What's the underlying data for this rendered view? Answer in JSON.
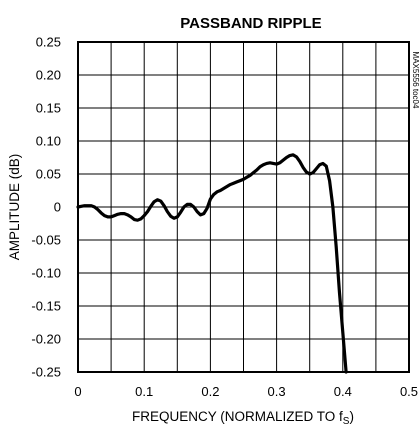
{
  "chart_data": {
    "type": "line",
    "title": "PASSBAND RIPPLE",
    "xlabel": "FREQUENCY (NORMALIZED TO f",
    "xlabel_sub": "S",
    "xlabel_close": ")",
    "ylabel": "AMPLITUDE (dB)",
    "side_note": "MAX5556 toc04",
    "xlim": [
      0,
      0.5
    ],
    "ylim": [
      -0.25,
      0.25
    ],
    "x_ticks": [
      0,
      0.1,
      0.2,
      0.3,
      0.4,
      0.5
    ],
    "x_tick_labels": [
      "0",
      "0.1",
      "0.2",
      "0.3",
      "0.4",
      "0.5"
    ],
    "y_ticks": [
      0.25,
      0.2,
      0.15,
      0.1,
      0.05,
      0,
      -0.05,
      -0.1,
      -0.15,
      -0.2,
      -0.25
    ],
    "y_tick_labels": [
      "0.25",
      "0.20",
      "0.15",
      "0.10",
      "0.05",
      "0",
      "-0.05",
      "-0.10",
      "-0.15",
      "-0.20",
      "-0.25"
    ],
    "x_grid_step": 0.05,
    "grid": true,
    "series": [
      {
        "points": [
          [
            0.0,
            0.0
          ],
          [
            0.005,
            0.001
          ],
          [
            0.01,
            0.002
          ],
          [
            0.015,
            0.002
          ],
          [
            0.02,
            0.002
          ],
          [
            0.025,
            0.0
          ],
          [
            0.03,
            -0.004
          ],
          [
            0.035,
            -0.009
          ],
          [
            0.04,
            -0.013
          ],
          [
            0.045,
            -0.015
          ],
          [
            0.05,
            -0.015
          ],
          [
            0.055,
            -0.013
          ],
          [
            0.06,
            -0.011
          ],
          [
            0.065,
            -0.01
          ],
          [
            0.07,
            -0.01
          ],
          [
            0.075,
            -0.012
          ],
          [
            0.08,
            -0.015
          ],
          [
            0.085,
            -0.019
          ],
          [
            0.09,
            -0.02
          ],
          [
            0.095,
            -0.018
          ],
          [
            0.1,
            -0.013
          ],
          [
            0.105,
            -0.007
          ],
          [
            0.11,
            0.001
          ],
          [
            0.115,
            0.008
          ],
          [
            0.12,
            0.011
          ],
          [
            0.125,
            0.009
          ],
          [
            0.13,
            0.002
          ],
          [
            0.135,
            -0.007
          ],
          [
            0.14,
            -0.014
          ],
          [
            0.145,
            -0.017
          ],
          [
            0.15,
            -0.015
          ],
          [
            0.155,
            -0.008
          ],
          [
            0.16,
            0.0
          ],
          [
            0.165,
            0.004
          ],
          [
            0.17,
            0.004
          ],
          [
            0.175,
            0.0
          ],
          [
            0.18,
            -0.007
          ],
          [
            0.185,
            -0.012
          ],
          [
            0.19,
            -0.01
          ],
          [
            0.195,
            -0.002
          ],
          [
            0.2,
            0.012
          ],
          [
            0.205,
            0.019
          ],
          [
            0.21,
            0.023
          ],
          [
            0.215,
            0.025
          ],
          [
            0.22,
            0.028
          ],
          [
            0.225,
            0.031
          ],
          [
            0.23,
            0.034
          ],
          [
            0.235,
            0.036
          ],
          [
            0.24,
            0.038
          ],
          [
            0.245,
            0.04
          ],
          [
            0.25,
            0.042
          ],
          [
            0.255,
            0.045
          ],
          [
            0.26,
            0.048
          ],
          [
            0.265,
            0.052
          ],
          [
            0.27,
            0.056
          ],
          [
            0.275,
            0.061
          ],
          [
            0.28,
            0.064
          ],
          [
            0.285,
            0.066
          ],
          [
            0.29,
            0.067
          ],
          [
            0.295,
            0.066
          ],
          [
            0.3,
            0.065
          ],
          [
            0.305,
            0.067
          ],
          [
            0.31,
            0.071
          ],
          [
            0.315,
            0.075
          ],
          [
            0.32,
            0.078
          ],
          [
            0.325,
            0.079
          ],
          [
            0.33,
            0.076
          ],
          [
            0.335,
            0.069
          ],
          [
            0.34,
            0.06
          ],
          [
            0.345,
            0.053
          ],
          [
            0.35,
            0.05
          ],
          [
            0.355,
            0.052
          ],
          [
            0.36,
            0.058
          ],
          [
            0.365,
            0.064
          ],
          [
            0.37,
            0.066
          ],
          [
            0.375,
            0.062
          ],
          [
            0.38,
            0.04
          ],
          [
            0.385,
            0.0
          ],
          [
            0.39,
            -0.06
          ],
          [
            0.395,
            -0.13
          ],
          [
            0.4,
            -0.19
          ],
          [
            0.405,
            -0.25
          ]
        ]
      }
    ]
  }
}
